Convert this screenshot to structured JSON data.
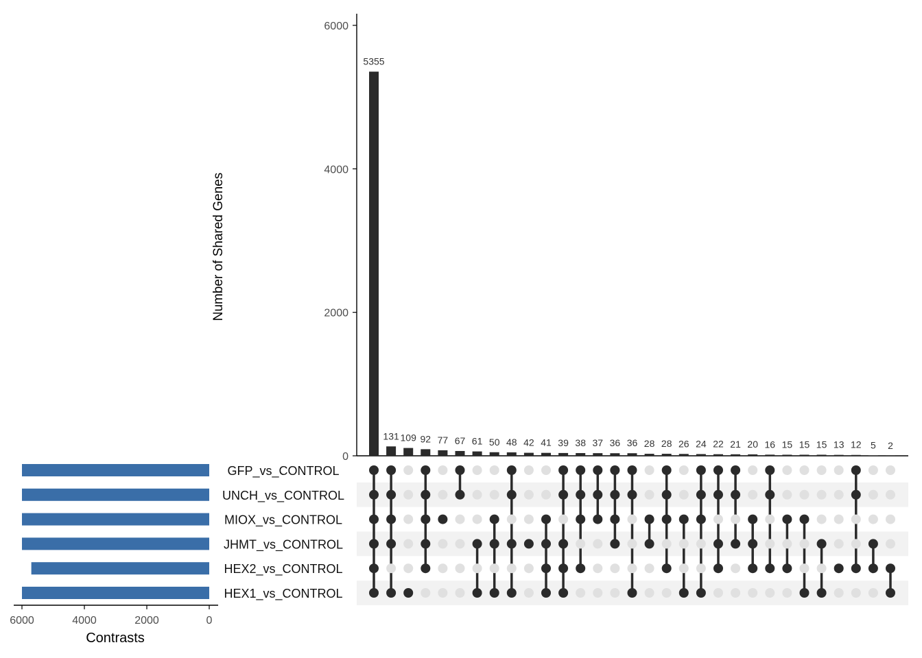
{
  "chart_data": {
    "type": "upset",
    "ylabel": "Number of Shared Genes",
    "yticks": [
      0,
      2000,
      4000,
      6000
    ],
    "ylim": [
      0,
      6000
    ],
    "set_size_label": "Contrasts",
    "set_size_ticks": [
      6000,
      4000,
      2000,
      0
    ],
    "set_size_lim": [
      0,
      6000
    ],
    "sets": [
      {
        "name": "GFP_vs_CONTROL",
        "size": 6000
      },
      {
        "name": "UNCH_vs_CONTROL",
        "size": 6000
      },
      {
        "name": "MIOX_vs_CONTROL",
        "size": 6000
      },
      {
        "name": "JHMT_vs_CONTROL",
        "size": 6000
      },
      {
        "name": "HEX2_vs_CONTROL",
        "size": 5700
      },
      {
        "name": "HEX1_vs_CONTROL",
        "size": 6000
      }
    ],
    "intersections": [
      {
        "value": 5355,
        "members": [
          0,
          1,
          2,
          3,
          4,
          5
        ]
      },
      {
        "value": 131,
        "members": [
          0,
          1,
          2,
          3,
          5
        ]
      },
      {
        "value": 109,
        "members": [
          5
        ]
      },
      {
        "value": 92,
        "members": [
          0,
          1,
          2,
          3,
          4
        ]
      },
      {
        "value": 77,
        "members": [
          2
        ]
      },
      {
        "value": 67,
        "members": [
          0,
          1
        ]
      },
      {
        "value": 61,
        "members": [
          3,
          5
        ]
      },
      {
        "value": 50,
        "members": [
          2,
          3,
          5
        ]
      },
      {
        "value": 48,
        "members": [
          0,
          1,
          3,
          5
        ]
      },
      {
        "value": 42,
        "members": [
          3
        ]
      },
      {
        "value": 41,
        "members": [
          2,
          3,
          4,
          5
        ]
      },
      {
        "value": 39,
        "members": [
          0,
          1,
          3,
          4,
          5
        ]
      },
      {
        "value": 38,
        "members": [
          0,
          1,
          2,
          4
        ]
      },
      {
        "value": 37,
        "members": [
          0,
          1,
          2
        ]
      },
      {
        "value": 36,
        "members": [
          0,
          1,
          2,
          3
        ]
      },
      {
        "value": 36,
        "members": [
          0,
          1,
          5
        ]
      },
      {
        "value": 28,
        "members": [
          2,
          3
        ]
      },
      {
        "value": 28,
        "members": [
          0,
          1,
          2,
          4
        ]
      },
      {
        "value": 26,
        "members": [
          2,
          5
        ]
      },
      {
        "value": 24,
        "members": [
          0,
          1,
          2,
          5
        ]
      },
      {
        "value": 22,
        "members": [
          0,
          1,
          3,
          4
        ]
      },
      {
        "value": 21,
        "members": [
          0,
          1,
          3
        ]
      },
      {
        "value": 20,
        "members": [
          2,
          3,
          4
        ]
      },
      {
        "value": 16,
        "members": [
          0,
          1,
          4
        ]
      },
      {
        "value": 15,
        "members": [
          2,
          4
        ]
      },
      {
        "value": 15,
        "members": [
          2,
          5
        ]
      },
      {
        "value": 15,
        "members": [
          3,
          5
        ]
      },
      {
        "value": 13,
        "members": [
          4
        ]
      },
      {
        "value": 12,
        "members": [
          0,
          1,
          4
        ]
      },
      {
        "value": 5,
        "members": [
          3,
          4
        ]
      },
      {
        "value": 2,
        "members": [
          4,
          5
        ]
      }
    ],
    "colors": {
      "bar": "#2b2b2b",
      "set_bar": "#3a6ea8",
      "dot_active": "#2b2b2b",
      "dot_inactive": "#e0e0e0",
      "stripe": "#f2f2f2",
      "axis": "#000000",
      "tick_text": "#4d4d4d"
    }
  }
}
